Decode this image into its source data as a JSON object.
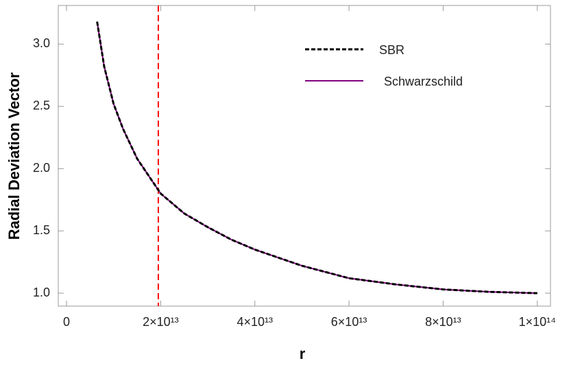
{
  "chart_data": {
    "type": "line",
    "xlabel": "r",
    "ylabel": "Radial Deviation Vector",
    "x": [
      6500000000000,
      8000000000000,
      10000000000000,
      12000000000000,
      15000000000000,
      20000000000000,
      25000000000000,
      30000000000000,
      35000000000000,
      40000000000000,
      50000000000000,
      60000000000000,
      70000000000000,
      80000000000000,
      90000000000000,
      100000000000000
    ],
    "series": [
      {
        "name": "SBR",
        "color": "#000000",
        "dashed": true,
        "values": [
          3.18,
          2.82,
          2.52,
          2.32,
          2.08,
          1.8,
          1.64,
          1.53,
          1.43,
          1.35,
          1.22,
          1.12,
          1.07,
          1.03,
          1.01,
          1.0
        ]
      },
      {
        "name": "Schwarzschild",
        "color": "#800080",
        "dashed": false,
        "values": [
          3.18,
          2.82,
          2.52,
          2.32,
          2.08,
          1.8,
          1.64,
          1.53,
          1.43,
          1.35,
          1.22,
          1.12,
          1.07,
          1.03,
          1.01,
          1.0
        ]
      }
    ],
    "vline": {
      "x": 19500000000000,
      "color": "#ff0000"
    },
    "xlim": [
      -1750000000000,
      102800000000000
    ],
    "ylim": [
      0.896,
      3.31
    ],
    "xticks": [
      0,
      {
        "value": 20000000000000,
        "label": "2×10¹³"
      },
      {
        "value": 40000000000000,
        "label": "4×10¹³"
      },
      {
        "value": 60000000000000,
        "label": "6×10¹³"
      },
      {
        "value": 80000000000000,
        "label": "8×10¹³"
      },
      {
        "value": 100000000000000,
        "label": "1×10¹⁴"
      }
    ],
    "yticks": [
      {
        "value": 1,
        "label": "1.0"
      },
      1.5,
      {
        "value": 2,
        "label": "2.0"
      },
      2.5,
      {
        "value": 3,
        "label": "3.0"
      }
    ]
  }
}
